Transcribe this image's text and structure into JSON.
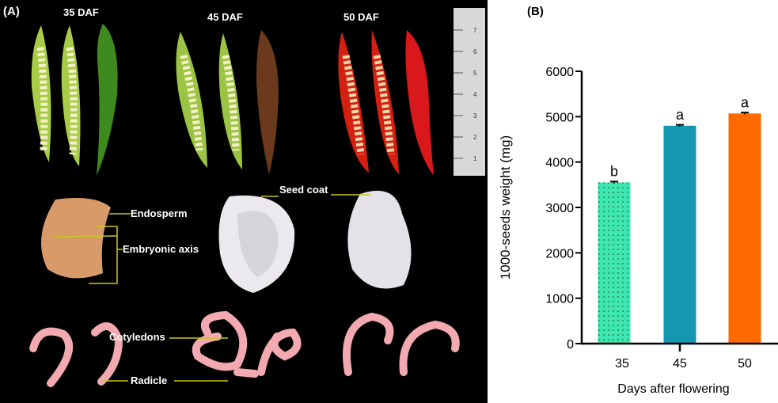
{
  "panel_a": {
    "label": "(A)",
    "stages": [
      "35 DAF",
      "45 DAF",
      "50 DAF"
    ],
    "annotations": {
      "endosperm": "Endosperm",
      "embryonic_axis": "Embryonic axis",
      "seed_coat": "Seed coat",
      "cotyledons": "Cotyledons",
      "radicle": "Radicle"
    },
    "ruler_marks": [
      "1",
      "2",
      "3",
      "4",
      "5",
      "6",
      "7"
    ],
    "colors": {
      "label_line": "#c8c81e",
      "background": "#000000"
    }
  },
  "chart_data": {
    "panel_label": "(B)",
    "type": "bar",
    "categories": [
      "35",
      "45",
      "50"
    ],
    "values": [
      3550,
      4800,
      5070
    ],
    "error": [
      20,
      20,
      20
    ],
    "significance": [
      "b",
      "a",
      "a"
    ],
    "colors": [
      "#3ee6b0",
      "#1597b0",
      "#ff6a00"
    ],
    "pattern": [
      "dotted",
      "solid",
      "solid"
    ],
    "xlabel": "Days after flowering",
    "ylabel": "1000-seeds weight (mg)",
    "ylim": [
      0,
      6000
    ],
    "yticks": [
      "0",
      "1000",
      "2000",
      "3000",
      "4000",
      "5000",
      "6000"
    ],
    "grid": false
  }
}
